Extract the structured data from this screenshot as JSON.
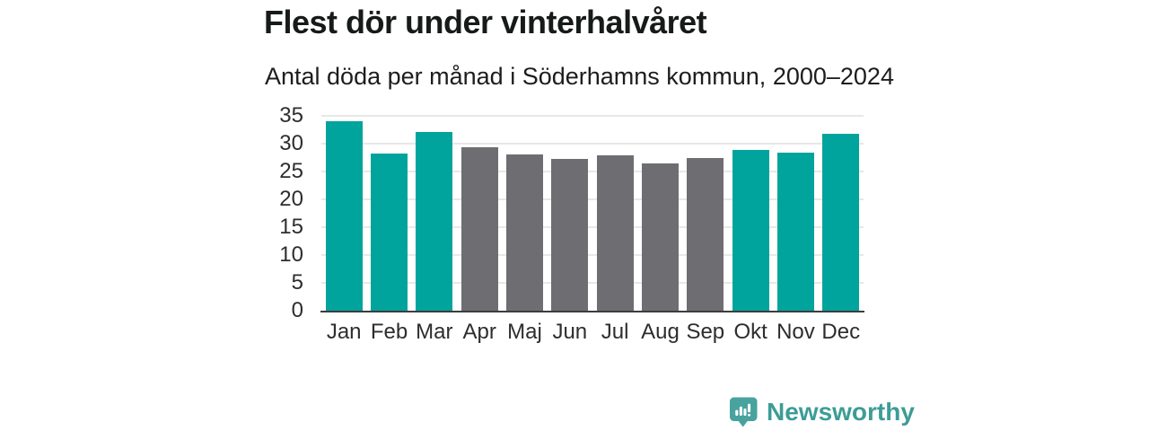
{
  "chart_data": {
    "type": "bar",
    "title": "Flest dör under vinterhalvåret",
    "subtitle": "Antal döda per månad i Söderhamns kommun, 2000–2024",
    "categories": [
      "Jan",
      "Feb",
      "Mar",
      "Apr",
      "Maj",
      "Jun",
      "Jul",
      "Aug",
      "Sep",
      "Okt",
      "Nov",
      "Dec"
    ],
    "values": [
      34.1,
      28.2,
      32.1,
      29.3,
      28.1,
      27.2,
      27.9,
      26.5,
      27.4,
      28.9,
      28.4,
      31.8
    ],
    "bar_colors": [
      "teal",
      "teal",
      "teal",
      "gray",
      "gray",
      "gray",
      "gray",
      "gray",
      "gray",
      "teal",
      "teal",
      "teal"
    ],
    "xlabel": "",
    "ylabel": "",
    "ylim": [
      0,
      35
    ],
    "y_ticks": [
      0,
      5,
      10,
      15,
      20,
      25,
      30,
      35
    ],
    "grid": "horizontal",
    "legend": "none"
  },
  "colors": {
    "teal": "#00a49c",
    "gray": "#6e6e72",
    "gridline": "#e8e8e8",
    "axis": "#3d3d3d",
    "title_text": "#161a19",
    "brand_teal": "#3d9c96",
    "logo_fill": "#48a29e"
  },
  "brand": {
    "name": "Newsworthy"
  }
}
